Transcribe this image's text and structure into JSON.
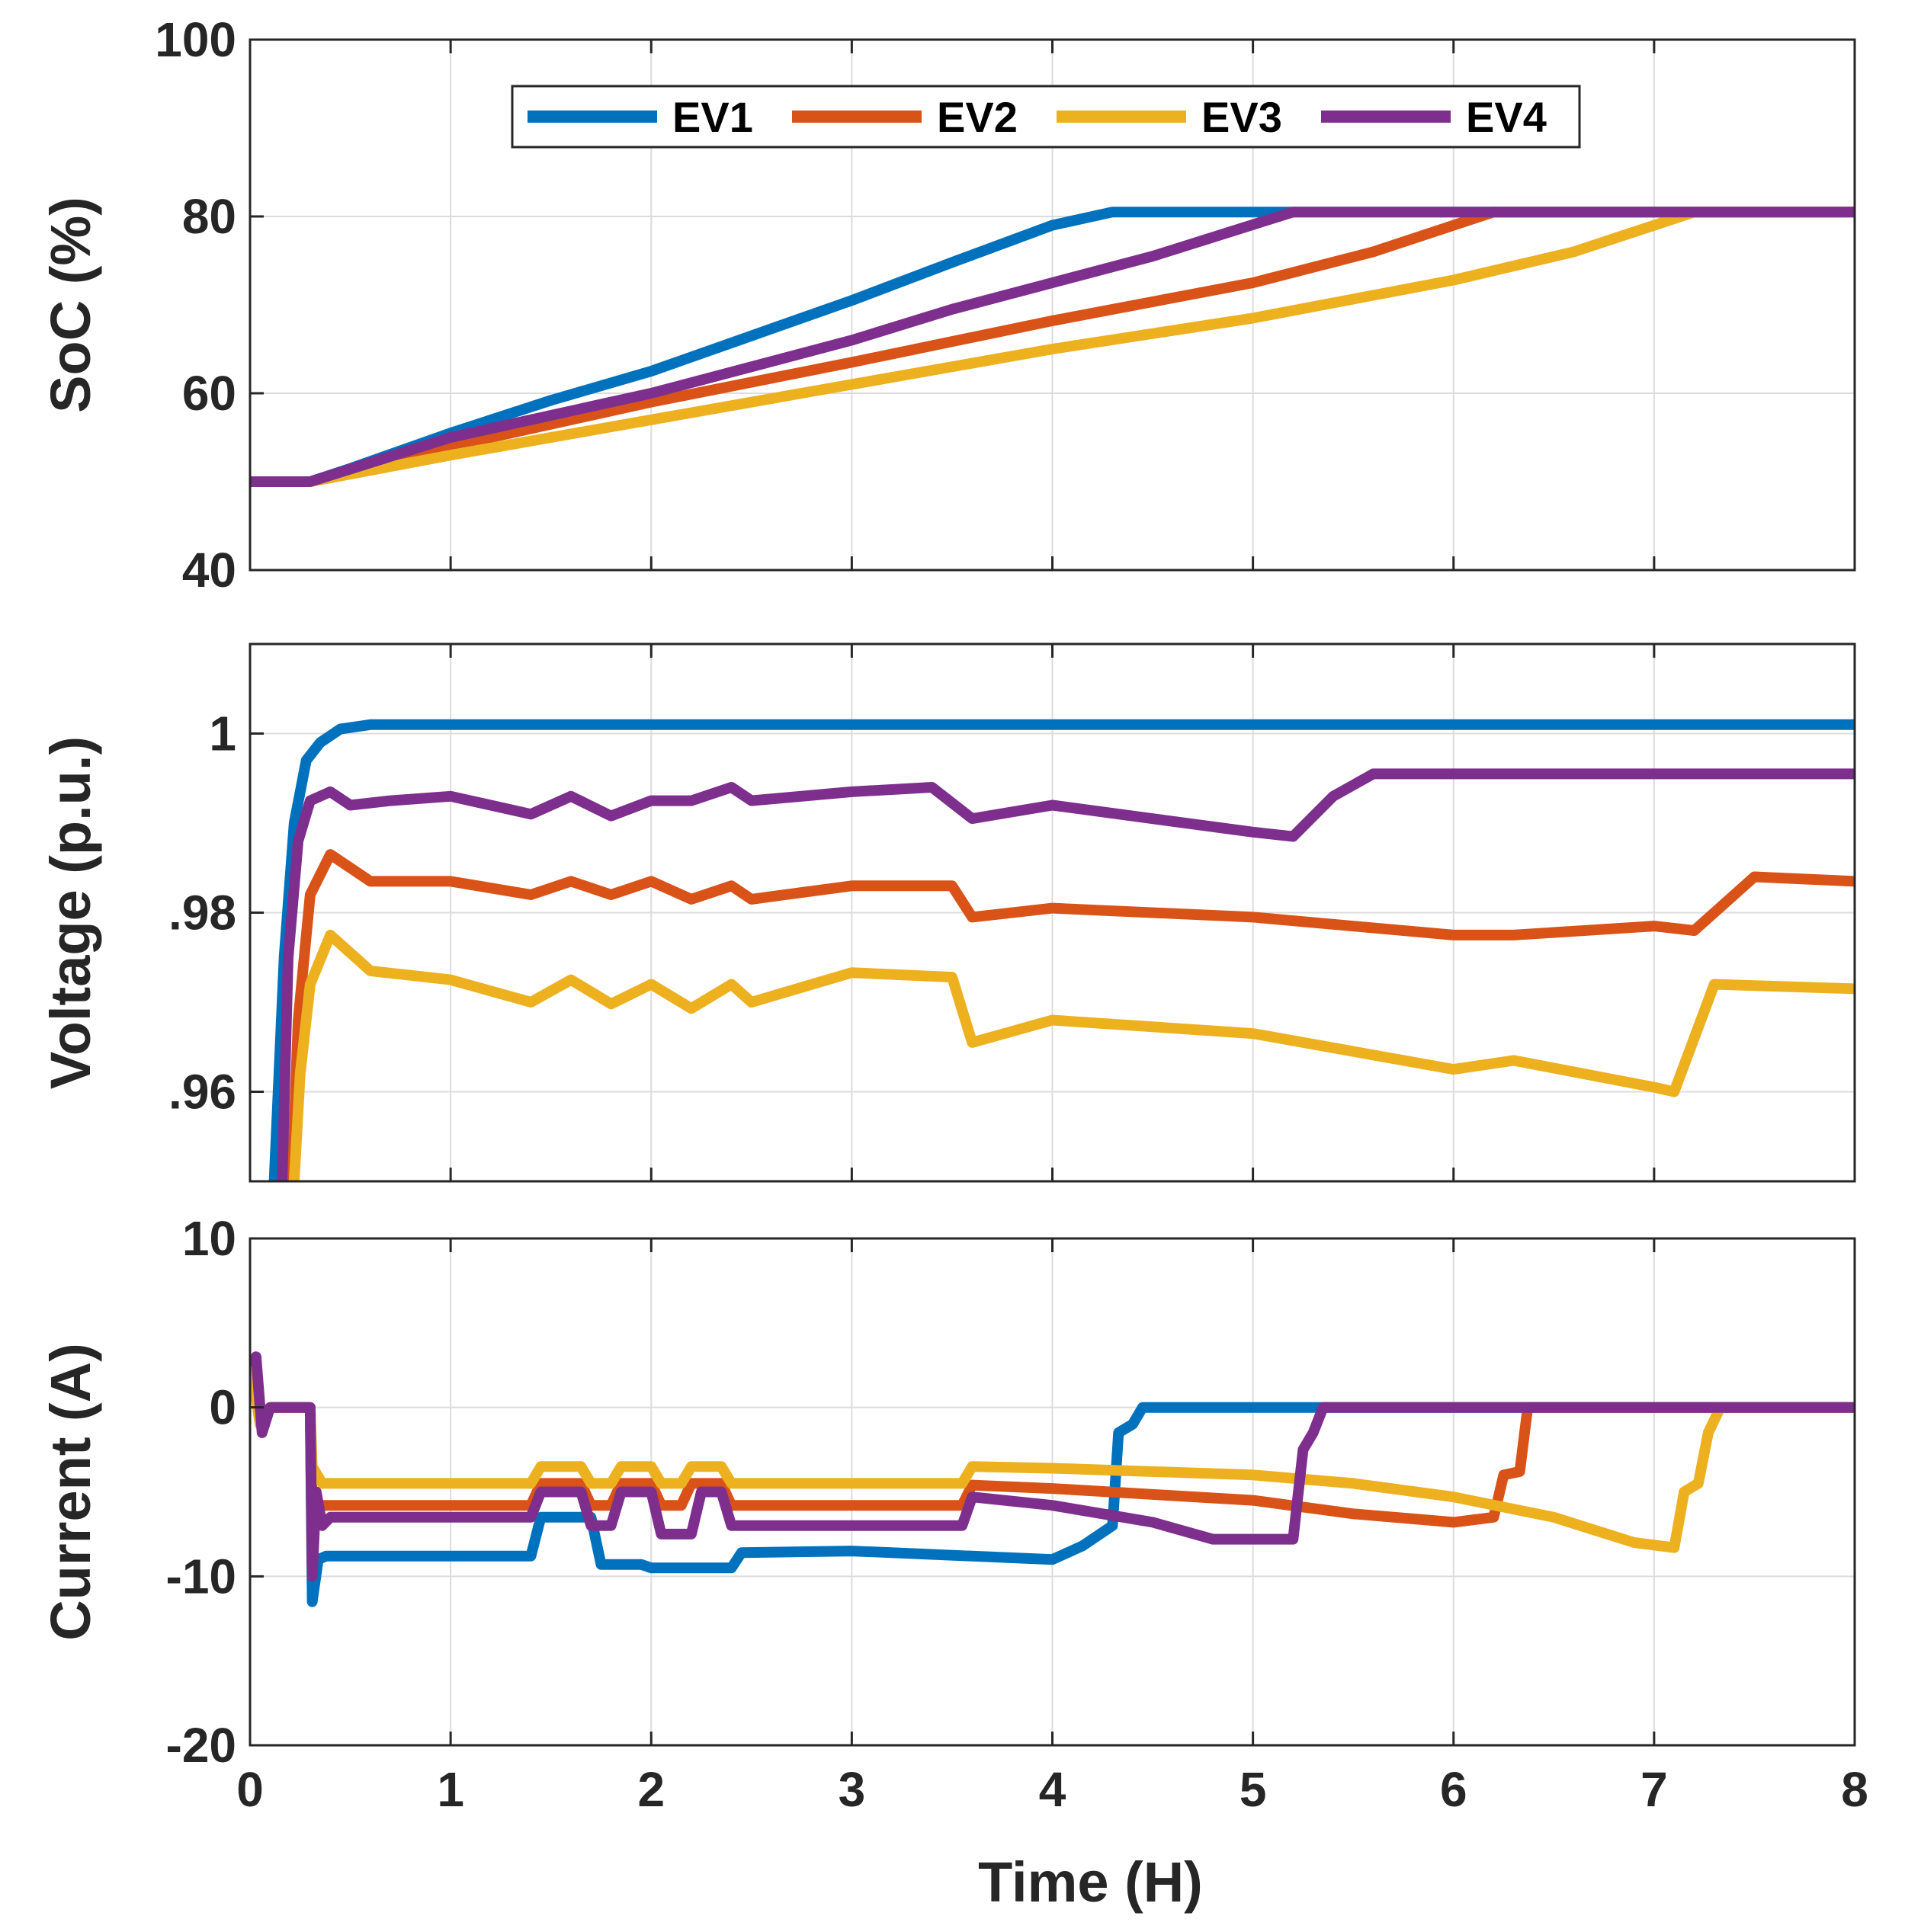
{
  "chart_data": [
    {
      "type": "line",
      "id": "soc",
      "ylabel": "SoC (%)",
      "xlabel": "",
      "xlim": [
        0,
        8
      ],
      "ylim": [
        40,
        100
      ],
      "yticks": [
        40,
        60,
        80,
        100
      ],
      "yticklabels": [
        "40",
        "60",
        "80",
        "100"
      ],
      "xticks": [
        0,
        1,
        2,
        3,
        4,
        5,
        6,
        7,
        8
      ],
      "grid": true,
      "legend": {
        "placement": "top-center",
        "orientation": "horizontal"
      },
      "series": [
        {
          "name": "EV1",
          "color": "#0072BD",
          "x": [
            0,
            0.3,
            0.5,
            1,
            1.5,
            2,
            2.5,
            3,
            3.5,
            4,
            4.3,
            8
          ],
          "y": [
            50,
            50,
            51.5,
            55.5,
            59.2,
            62.5,
            66.5,
            70.5,
            74.8,
            79,
            80.5,
            80.5
          ]
        },
        {
          "name": "EV2",
          "color": "#D95319",
          "x": [
            0,
            0.3,
            1,
            2,
            3,
            4,
            5,
            5.6,
            6.2,
            8
          ],
          "y": [
            50,
            50,
            54,
            59,
            63.5,
            68.2,
            72.5,
            76,
            80.5,
            80.5
          ]
        },
        {
          "name": "EV3",
          "color": "#EDB120",
          "x": [
            0,
            0.3,
            1,
            2,
            3,
            4,
            5,
            6,
            6.6,
            7.2,
            8
          ],
          "y": [
            50,
            50,
            53,
            57,
            61,
            65,
            68.5,
            72.8,
            76,
            80.5,
            80.5
          ]
        },
        {
          "name": "EV4",
          "color": "#7E2F8E",
          "x": [
            0,
            0.3,
            1,
            2,
            3,
            3.5,
            4,
            4.5,
            5.2,
            8
          ],
          "y": [
            50,
            50,
            55,
            60,
            66,
            69.5,
            72.5,
            75.5,
            80.5,
            80.5
          ]
        }
      ]
    },
    {
      "type": "line",
      "id": "voltage",
      "ylabel": "Voltage (p.u.)",
      "xlabel": "",
      "xlim": [
        0,
        8
      ],
      "ylim": [
        0.95,
        1.01
      ],
      "yticks": [
        0.96,
        0.98,
        1.0
      ],
      "yticklabels": [
        ".96",
        ".98",
        "1"
      ],
      "xticks": [
        0,
        1,
        2,
        3,
        4,
        5,
        6,
        7,
        8
      ],
      "grid": true,
      "series": [
        {
          "name": "EV1",
          "color": "#0072BD",
          "x": [
            0.12,
            0.17,
            0.22,
            0.28,
            0.35,
            0.45,
            0.6,
            8
          ],
          "y": [
            0.95,
            0.975,
            0.99,
            0.997,
            0.999,
            1.0005,
            1.001,
            1.001
          ]
        },
        {
          "name": "EV2",
          "color": "#D95319",
          "x": [
            0.21,
            0.24,
            0.3,
            0.4,
            0.6,
            1.0,
            1.4,
            1.6,
            1.8,
            2.0,
            2.2,
            2.4,
            2.5,
            3.0,
            3.5,
            3.6,
            4.0,
            5.0,
            6.0,
            6.3,
            7.0,
            7.2,
            7.5,
            8.0
          ],
          "y": [
            0.95,
            0.968,
            0.982,
            0.9865,
            0.9835,
            0.9835,
            0.982,
            0.9835,
            0.982,
            0.9835,
            0.9815,
            0.983,
            0.9815,
            0.983,
            0.983,
            0.9795,
            0.9805,
            0.9795,
            0.9775,
            0.9775,
            0.9785,
            0.978,
            0.984,
            0.9835
          ]
        },
        {
          "name": "EV3",
          "color": "#EDB120",
          "x": [
            0.22,
            0.25,
            0.3,
            0.4,
            0.6,
            1.0,
            1.4,
            1.6,
            1.8,
            2.0,
            2.2,
            2.4,
            2.5,
            3.0,
            3.5,
            3.6,
            4.0,
            5.0,
            6.0,
            6.3,
            7.0,
            7.1,
            7.3,
            8.0
          ],
          "y": [
            0.95,
            0.962,
            0.972,
            0.9775,
            0.9735,
            0.9725,
            0.97,
            0.9725,
            0.9698,
            0.972,
            0.9693,
            0.972,
            0.97,
            0.9733,
            0.9728,
            0.9655,
            0.968,
            0.9665,
            0.9625,
            0.9635,
            0.9605,
            0.96,
            0.972,
            0.9715
          ]
        },
        {
          "name": "EV4",
          "color": "#7E2F8E",
          "x": [
            0.16,
            0.19,
            0.24,
            0.3,
            0.4,
            0.5,
            0.7,
            1.0,
            1.4,
            1.6,
            1.8,
            2.0,
            2.2,
            2.4,
            2.5,
            3.0,
            3.4,
            3.6,
            4.0,
            5.0,
            5.2,
            5.4,
            5.6,
            6.0,
            7.0,
            8.0
          ],
          "y": [
            0.95,
            0.975,
            0.988,
            0.9925,
            0.9935,
            0.992,
            0.9925,
            0.993,
            0.991,
            0.993,
            0.9908,
            0.9925,
            0.9925,
            0.994,
            0.9925,
            0.9935,
            0.994,
            0.9905,
            0.992,
            0.989,
            0.9885,
            0.993,
            0.9955,
            0.9955,
            0.9955,
            0.9955
          ]
        }
      ]
    },
    {
      "type": "line",
      "id": "current",
      "ylabel": "Current (A)",
      "xlabel": "Time (H)",
      "xlim": [
        0,
        8
      ],
      "ylim": [
        -20,
        10
      ],
      "yticks": [
        -20,
        -10,
        0,
        10
      ],
      "yticklabels": [
        "-20",
        "-10",
        "0",
        "10"
      ],
      "xticks": [
        0,
        1,
        2,
        3,
        4,
        5,
        6,
        7,
        8
      ],
      "xticklabels": [
        "0",
        "1",
        "2",
        "3",
        "4",
        "5",
        "6",
        "7",
        "8"
      ],
      "grid": true,
      "series": [
        {
          "name": "EV1",
          "color": "#0072BD",
          "x": [
            0,
            0.02,
            0.05,
            0.1,
            0.3,
            0.31,
            0.34,
            0.38,
            1.4,
            1.45,
            1.7,
            1.75,
            1.95,
            2.0,
            2.4,
            2.45,
            3.0,
            4.0,
            4.15,
            4.3,
            4.33,
            4.4,
            4.45,
            8.0
          ],
          "y": [
            3,
            2.5,
            -1,
            0,
            0,
            -11.5,
            -9,
            -8.8,
            -8.8,
            -6.5,
            -6.5,
            -9.3,
            -9.3,
            -9.5,
            -9.5,
            -8.6,
            -8.5,
            -9.0,
            -8.2,
            -7,
            -1.5,
            -1,
            0,
            0
          ]
        },
        {
          "name": "EV2",
          "color": "#D95319",
          "x": [
            0,
            0.05,
            0.1,
            0.3,
            0.31,
            0.36,
            1.4,
            1.45,
            1.65,
            1.7,
            1.8,
            1.85,
            2.0,
            2.05,
            2.15,
            2.2,
            2.35,
            2.4,
            3.0,
            3.55,
            3.6,
            4.0,
            5.0,
            5.5,
            6.0,
            6.2,
            6.25,
            6.33,
            6.37,
            8.0
          ],
          "y": [
            3,
            -1,
            0,
            0,
            -6,
            -5.8,
            -5.8,
            -4.5,
            -4.5,
            -5.8,
            -5.8,
            -4.5,
            -4.5,
            -5.8,
            -5.8,
            -4.5,
            -4.5,
            -5.8,
            -5.8,
            -5.8,
            -4.6,
            -4.8,
            -5.5,
            -6.3,
            -6.8,
            -6.5,
            -4,
            -3.8,
            0,
            0
          ]
        },
        {
          "name": "EV3",
          "color": "#EDB120",
          "x": [
            0,
            0.05,
            0.1,
            0.3,
            0.31,
            0.36,
            1.4,
            1.45,
            1.65,
            1.7,
            1.8,
            1.85,
            2.0,
            2.05,
            2.15,
            2.2,
            2.35,
            2.4,
            3.0,
            3.55,
            3.6,
            4.0,
            5.0,
            5.5,
            6.0,
            6.5,
            6.9,
            7.1,
            7.15,
            7.22,
            7.27,
            7.33,
            8.0
          ],
          "y": [
            3,
            -1,
            0,
            0,
            -3.5,
            -4.5,
            -4.5,
            -3.5,
            -3.5,
            -4.5,
            -4.5,
            -3.5,
            -3.5,
            -4.5,
            -4.5,
            -3.5,
            -3.5,
            -4.5,
            -4.5,
            -4.5,
            -3.5,
            -3.6,
            -4,
            -4.5,
            -5.3,
            -6.5,
            -8,
            -8.3,
            -5,
            -4.5,
            -1.5,
            0,
            0
          ]
        },
        {
          "name": "EV4",
          "color": "#7E2F8E",
          "x": [
            0,
            0.03,
            0.06,
            0.1,
            0.3,
            0.31,
            0.33,
            0.36,
            0.4,
            1.4,
            1.45,
            1.65,
            1.7,
            1.8,
            1.85,
            2.0,
            2.05,
            2.2,
            2.25,
            2.35,
            2.4,
            3.0,
            3.55,
            3.6,
            4.0,
            4.5,
            4.8,
            5.0,
            5.2,
            5.25,
            5.3,
            5.35,
            8.0
          ],
          "y": [
            2.5,
            3,
            -1.5,
            0,
            0,
            -10,
            -5,
            -7,
            -6.5,
            -6.5,
            -5,
            -5,
            -7,
            -7,
            -5,
            -5,
            -7.5,
            -7.5,
            -5,
            -5,
            -7,
            -7,
            -7,
            -5.3,
            -5.8,
            -6.8,
            -7.8,
            -7.8,
            -7.8,
            -2.5,
            -1.5,
            0,
            0
          ]
        }
      ]
    }
  ]
}
